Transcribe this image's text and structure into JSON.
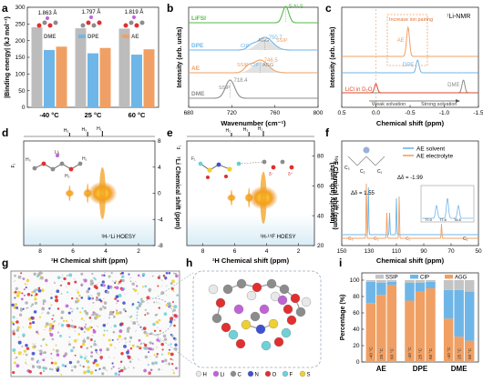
{
  "chart_data": [
    {
      "panel": "a",
      "type": "bar",
      "ylabel": "|Binding energy| (kJ mol⁻¹)",
      "ylim": [
        0,
        300
      ],
      "yticks": [
        0,
        50,
        100,
        150,
        200,
        250,
        300
      ],
      "categories": [
        "-40 °C",
        "25 °C",
        "60 °C"
      ],
      "series": [
        {
          "name": "DME",
          "color": "#bcbcbc",
          "values": [
            240,
            237,
            236
          ]
        },
        {
          "name": "DPE",
          "color": "#6fb6e8",
          "values": [
            172,
            162,
            158
          ]
        },
        {
          "name": "AE",
          "color": "#f0a064",
          "values": [
            182,
            178,
            174
          ]
        }
      ],
      "annotations": [
        "1.863 Å",
        "1.797 Å",
        "1.819 Å"
      ]
    },
    {
      "panel": "b",
      "type": "line",
      "xlabel": "Wavenumber (cm⁻¹)",
      "ylabel": "Intensity (arb. units)",
      "xlim": [
        680,
        800
      ],
      "xticks": [
        680,
        720,
        760,
        800
      ],
      "series": [
        {
          "name": "LiFSI",
          "color": "#55b848",
          "peak": 770,
          "label": "S-N-S"
        },
        {
          "name": "DPE",
          "color": "#6fb6e8",
          "peak": 750.7,
          "label": "750.7"
        },
        {
          "name": "AE",
          "color": "#f0a064",
          "peak": 746.5,
          "label": "746.5"
        },
        {
          "name": "DME",
          "color": "#8c8c8c",
          "peak": 718.4,
          "label": "718.4"
        }
      ],
      "annotations": [
        "CIP",
        "AGG",
        "SSIP",
        "SSIP",
        "CIP",
        "AGG",
        "SSIP"
      ]
    },
    {
      "panel": "c",
      "type": "line",
      "title": "⁷Li-NMR",
      "xlabel": "Chemical shift (ppm)",
      "ylabel": "Intensity (arb. units)",
      "xlim": [
        0.5,
        -1.5
      ],
      "xticks": [
        0.5,
        0.0,
        -0.5,
        -1.0,
        -1.5
      ],
      "series": [
        {
          "name": "AE",
          "color": "#f0a064",
          "peak": -0.47
        },
        {
          "name": "DPE",
          "color": "#6fb6e8",
          "peak": -0.61
        },
        {
          "name": "DME",
          "color": "#8c8c8c",
          "peak": -1.28
        },
        {
          "name": "LiCl in D₂O",
          "color": "#d94a2c",
          "peak": 0.0
        }
      ],
      "annotations": [
        "Increase ion pairing",
        "Weak solvation",
        "Strong solvation"
      ]
    },
    {
      "panel": "d",
      "type": "heatmap",
      "title": "¹H-⁷Li HOESY",
      "xlabel": "¹H Chemical shift (ppm)",
      "ylabel": "⁷Li Chemical shift (ppm)",
      "xlim": [
        9,
        1
      ],
      "xticks": [
        8,
        6,
        4,
        2
      ],
      "ylim": [
        -8,
        8
      ],
      "yticks": [
        8,
        4,
        0,
        -4,
        -8
      ],
      "peaks_x": [
        6.2,
        5.1,
        4.2
      ],
      "proton_labels": [
        "H₂",
        "H₃",
        "H₁"
      ],
      "f1_label": "F₁"
    },
    {
      "panel": "e",
      "type": "heatmap",
      "title": "¹H-¹⁹F HOESY",
      "xlabel": "¹H Chemical shift (ppm)",
      "ylabel": "¹⁹F Chemical shift (ppm)",
      "xlim": [
        9,
        1
      ],
      "xticks": [
        8,
        6,
        4,
        2
      ],
      "ylim": [
        20,
        90
      ],
      "yticks": [
        80,
        60,
        40,
        20
      ],
      "peaks_x": [
        6.2,
        5.1,
        4.2
      ],
      "proton_labels": [
        "H₂",
        "H₃",
        "H₁"
      ],
      "f1_label": "F₁"
    },
    {
      "panel": "f",
      "type": "line",
      "xlabel": "Chemical shift (ppm)",
      "ylabel": "Intensity (arb. units)",
      "xlim": [
        150,
        50
      ],
      "xticks": [
        150,
        130,
        110,
        90,
        70,
        50
      ],
      "series": [
        {
          "name": "AE solvent",
          "color": "#6fb6e8"
        },
        {
          "name": "AE electrolyte",
          "color": "#f0a064"
        }
      ],
      "annotations": [
        "Δδ = 1.55",
        "Δδ = -1.99",
        "C₁",
        "C₂",
        "C₃",
        "C₁",
        "C₂",
        "C₃",
        "C₁"
      ],
      "inset_ticks": [
        "77.0",
        "77.6",
        "76.5"
      ]
    },
    {
      "panel": "i",
      "type": "bar",
      "ylabel": "Percentage (%)",
      "ylim": [
        0,
        100
      ],
      "yticks": [
        0,
        20,
        40,
        60,
        80,
        100
      ],
      "groups": [
        "AE",
        "DPE",
        "DME"
      ],
      "bar_labels": [
        "-40 °C",
        "25 °C",
        "60 °C"
      ],
      "series": [
        {
          "name": "SSIP",
          "color": "#c4c4c4"
        },
        {
          "name": "CIP",
          "color": "#6fb6e8"
        },
        {
          "name": "AGG",
          "color": "#f0a064"
        }
      ],
      "stacks": [
        [
          [
            2,
            26,
            72
          ],
          [
            3,
            15,
            82
          ],
          [
            2,
            4,
            94
          ]
        ],
        [
          [
            3,
            22,
            75
          ],
          [
            3,
            11,
            86
          ],
          [
            2,
            8,
            90
          ]
        ],
        [
          [
            12,
            35,
            53
          ],
          [
            12,
            57,
            31
          ],
          [
            14,
            60,
            26
          ]
        ]
      ]
    }
  ],
  "panels": [
    "a",
    "b",
    "c",
    "d",
    "e",
    "f",
    "g",
    "h",
    "i"
  ],
  "legend_h": [
    {
      "label": "H",
      "color": "#e8e8e8"
    },
    {
      "label": "Li",
      "color": "#c063d8"
    },
    {
      "label": "C",
      "color": "#8c8c8c"
    },
    {
      "label": "N",
      "color": "#3f51d0"
    },
    {
      "label": "O",
      "color": "#e03030"
    },
    {
      "label": "F",
      "color": "#70d0d8"
    },
    {
      "label": "S",
      "color": "#f0d030"
    }
  ]
}
